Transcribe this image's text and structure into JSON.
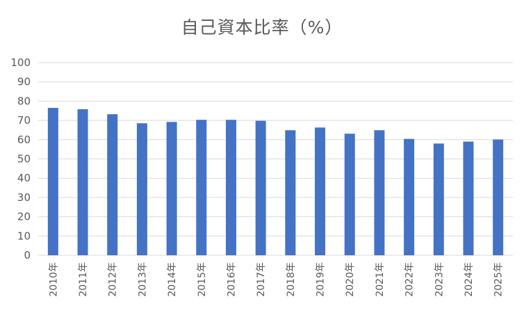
{
  "chart_data": {
    "type": "bar",
    "title": "自己資本比率（%）",
    "xlabel": "",
    "ylabel": "",
    "categories": [
      "2010年",
      "2011年",
      "2012年",
      "2013年",
      "2014年",
      "2015年",
      "2016年",
      "2017年",
      "2018年",
      "2019年",
      "2020年",
      "2021年",
      "2022年",
      "2023年",
      "2024年",
      "2025年"
    ],
    "values": [
      76.5,
      75.8,
      73.2,
      68.5,
      69.2,
      70.3,
      70.3,
      69.8,
      64.9,
      66.3,
      63.1,
      64.9,
      60.4,
      58.0,
      59.0,
      60.1
    ],
    "yticks": [
      0,
      10,
      20,
      30,
      40,
      50,
      60,
      70,
      80,
      90,
      100
    ],
    "ylim": [
      0,
      100
    ],
    "grid": true,
    "legend": "none",
    "colors": {
      "bar": "#4472c4",
      "grid": "#d9d9d9",
      "text": "#595959"
    }
  }
}
